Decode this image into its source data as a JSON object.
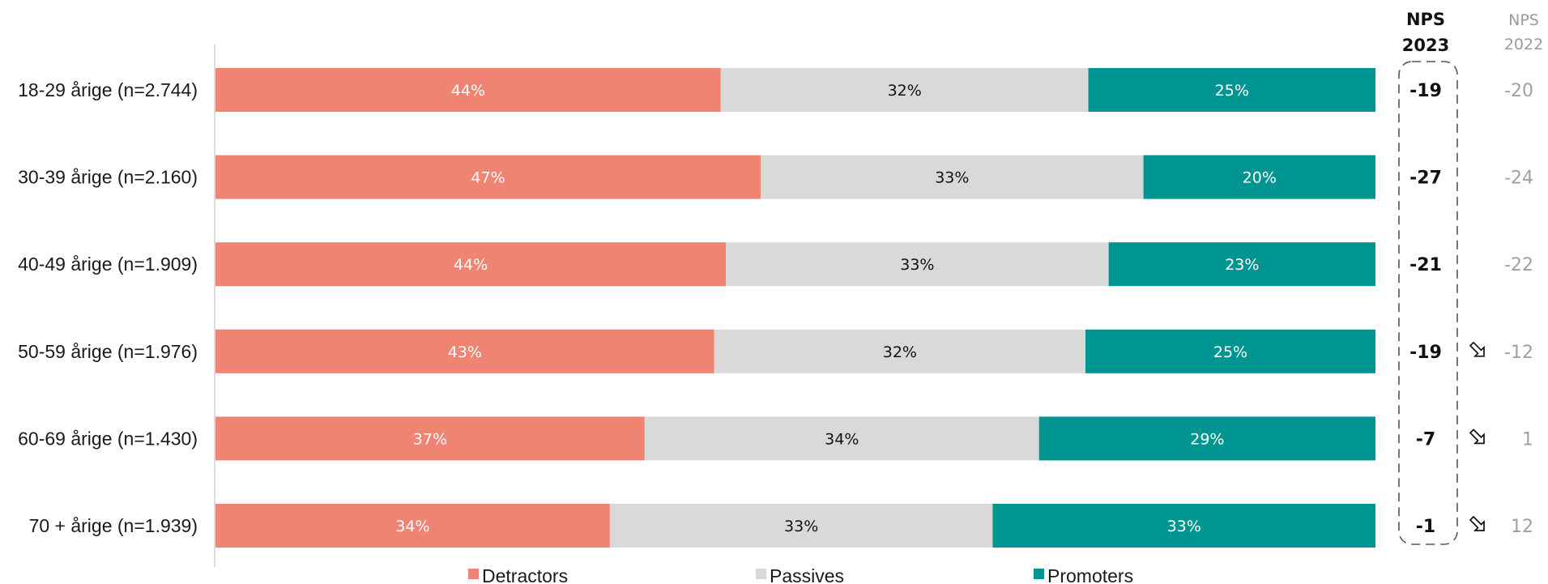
{
  "chart_data": {
    "type": "bar",
    "stacked": true,
    "orientation": "horizontal",
    "categories": [
      "18-29 årige (n=2.744)",
      "30-39 årige (n=2.160)",
      "40-49 årige (n=1.909)",
      "50-59 årige (n=1.976)",
      "60-69 årige (n=1.430)",
      "70 + årige (n=1.939)"
    ],
    "series": [
      {
        "name": "Detractors",
        "color": "#F08473",
        "label_color": "#ffffff",
        "values": [
          44,
          47,
          44,
          43,
          37,
          34
        ],
        "labels": [
          "44%",
          "47%",
          "44%",
          "43%",
          "37%",
          "34%"
        ]
      },
      {
        "name": "Passives",
        "color": "#D9D9D9",
        "label_color": "#111111",
        "values": [
          32,
          33,
          33,
          32,
          34,
          33
        ],
        "labels": [
          "32%",
          "33%",
          "33%",
          "32%",
          "34%",
          "33%"
        ]
      },
      {
        "name": "Promoters",
        "color": "#009590",
        "label_color": "#ffffff",
        "values": [
          25,
          20,
          23,
          25,
          29,
          33
        ],
        "labels": [
          "25%",
          "20%",
          "23%",
          "25%",
          "29%",
          "33%"
        ]
      }
    ],
    "legend_position": "bottom",
    "nps_2023": {
      "header_line1": "NPS",
      "header_line2": "2023",
      "values": [
        "-19",
        "-27",
        "-21",
        "-19",
        "-7",
        "-1"
      ]
    },
    "nps_2022": {
      "header_line1": "NPS",
      "header_line2": "2022",
      "values": [
        "-20",
        "-24",
        "-22",
        "-12",
        "1",
        "12"
      ]
    },
    "change_markers": [
      {
        "row": 3,
        "icon": "arrow-down-right-icon"
      },
      {
        "row": 4,
        "icon": "arrow-down-right-icon"
      },
      {
        "row": 5,
        "icon": "arrow-down-right-icon"
      }
    ]
  }
}
